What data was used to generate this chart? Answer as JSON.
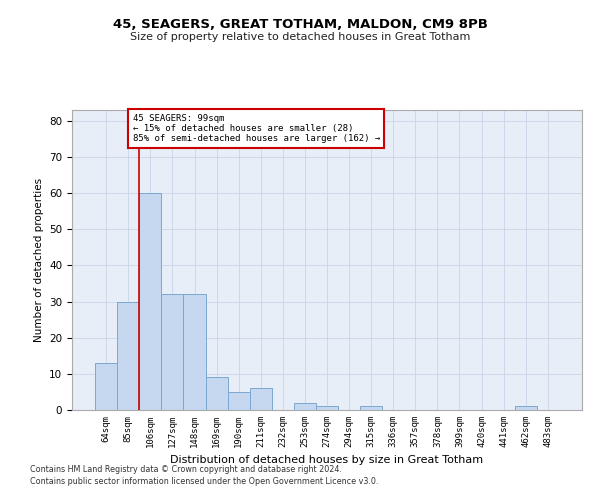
{
  "title1": "45, SEAGERS, GREAT TOTHAM, MALDON, CM9 8PB",
  "title2": "Size of property relative to detached houses in Great Totham",
  "xlabel": "Distribution of detached houses by size in Great Totham",
  "ylabel": "Number of detached properties",
  "categories": [
    "64sqm",
    "85sqm",
    "106sqm",
    "127sqm",
    "148sqm",
    "169sqm",
    "190sqm",
    "211sqm",
    "232sqm",
    "253sqm",
    "274sqm",
    "294sqm",
    "315sqm",
    "336sqm",
    "357sqm",
    "378sqm",
    "399sqm",
    "420sqm",
    "441sqm",
    "462sqm",
    "483sqm"
  ],
  "values": [
    13,
    30,
    60,
    32,
    32,
    9,
    5,
    6,
    0,
    2,
    1,
    0,
    1,
    0,
    0,
    0,
    0,
    0,
    0,
    1,
    0
  ],
  "bar_color": "#c5d8f0",
  "bar_edge_color": "#7ba8d0",
  "property_line_x": 1.5,
  "annotation_text": "45 SEAGERS: 99sqm\n← 15% of detached houses are smaller (28)\n85% of semi-detached houses are larger (162) →",
  "annotation_box_color": "#ffffff",
  "annotation_box_edge": "#cc0000",
  "vline_color": "#cc0000",
  "ylim": [
    0,
    83
  ],
  "yticks": [
    0,
    10,
    20,
    30,
    40,
    50,
    60,
    70,
    80
  ],
  "grid_color": "#c8d4e8",
  "background_color": "#e8eef8",
  "footnote1": "Contains HM Land Registry data © Crown copyright and database right 2024.",
  "footnote2": "Contains public sector information licensed under the Open Government Licence v3.0."
}
